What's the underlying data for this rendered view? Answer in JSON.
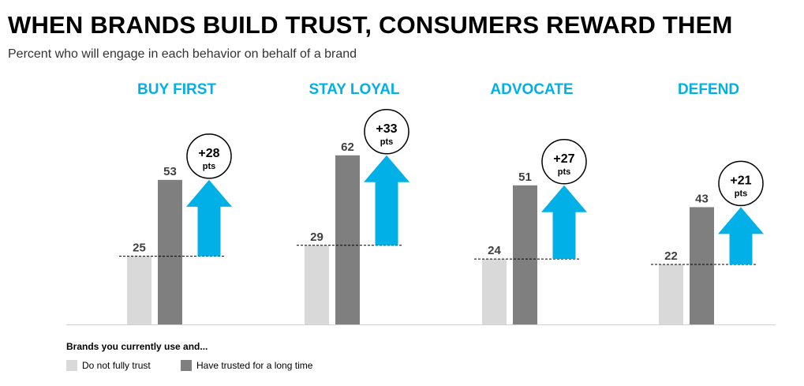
{
  "title": "WHEN BRANDS BUILD TRUST, CONSUMERS REWARD THEM",
  "subtitle": "Percent who will engage in each behavior on behalf of a brand",
  "colors": {
    "accent": "#00b0e6",
    "not_trust": "#d9d9d9",
    "trusted": "#7f7f7f",
    "label": "#404040"
  },
  "legend": {
    "title": "Brands you currently use and...",
    "items": [
      "Do not fully trust",
      "Have trusted for a long time"
    ]
  },
  "chart_data": {
    "type": "bar",
    "categories": [
      "BUY FIRST",
      "STAY LOYAL",
      "ADVOCATE",
      "DEFEND"
    ],
    "series": [
      {
        "name": "Do not fully trust",
        "values": [
          25,
          29,
          24,
          22
        ]
      },
      {
        "name": "Have trusted for a long time",
        "values": [
          53,
          62,
          51,
          43
        ]
      }
    ],
    "differences": [
      {
        "value": "+28",
        "unit": "pts"
      },
      {
        "value": "+33",
        "unit": "pts"
      },
      {
        "value": "+27",
        "unit": "pts"
      },
      {
        "value": "+21",
        "unit": "pts"
      }
    ],
    "ylim": [
      0,
      100
    ],
    "grid": false,
    "legend_position": "bottom-left"
  }
}
